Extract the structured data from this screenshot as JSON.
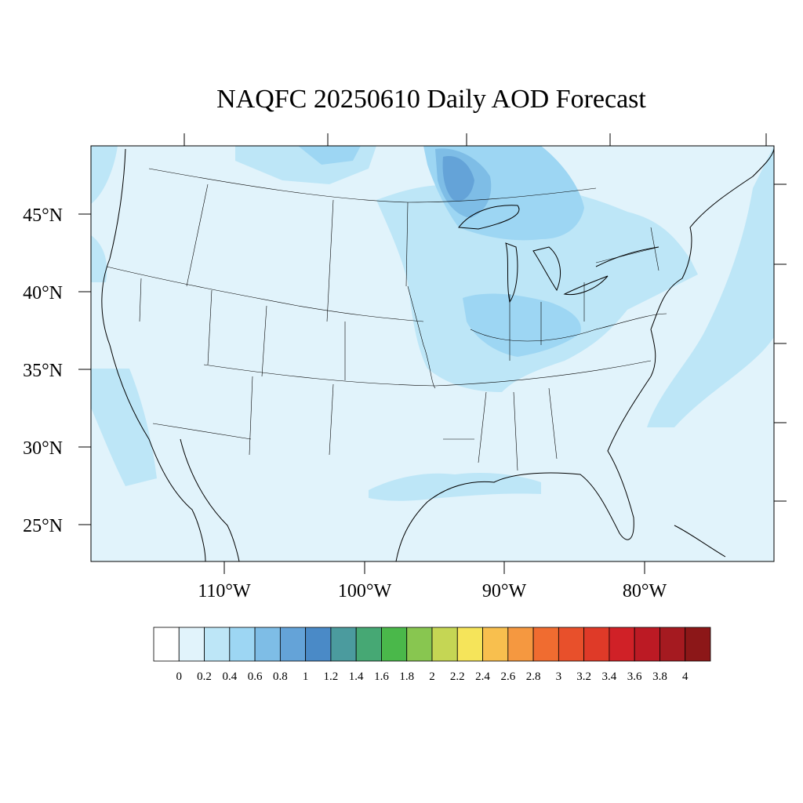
{
  "title": "NAQFC 20250610 Daily AOD Forecast",
  "map": {
    "projection": "Lambert conformal (CONUS)",
    "lat_labels": [
      "45°N",
      "40°N",
      "35°N",
      "30°N",
      "25°N"
    ],
    "lon_labels": [
      "110°W",
      "100°W",
      "90°W",
      "80°W"
    ],
    "aod_field_description_levels": {
      "background": 0.2,
      "plume_core_minnesota_lake_superior": 1.0,
      "great_lakes_midwest": 0.6,
      "atlantic_offshore": 0.4
    }
  },
  "colorbar": {
    "labels": [
      "0",
      "0.2",
      "0.4",
      "0.6",
      "0.8",
      "1",
      "1.2",
      "1.4",
      "1.6",
      "1.8",
      "2",
      "2.2",
      "2.4",
      "2.6",
      "2.8",
      "3",
      "3.2",
      "3.4",
      "3.6",
      "3.8",
      "4"
    ],
    "colors": [
      "#ffffff",
      "#e1f3fb",
      "#bde6f7",
      "#9dd6f3",
      "#7ebde6",
      "#64a3d8",
      "#4a8ac7",
      "#4b9b9e",
      "#46a874",
      "#4ab84a",
      "#88c650",
      "#c5d654",
      "#f5e45a",
      "#f8bf4e",
      "#f59840",
      "#f06c30",
      "#e8502b",
      "#df3a28",
      "#d02127",
      "#bc1a24",
      "#a51a20",
      "#8c1718"
    ]
  }
}
